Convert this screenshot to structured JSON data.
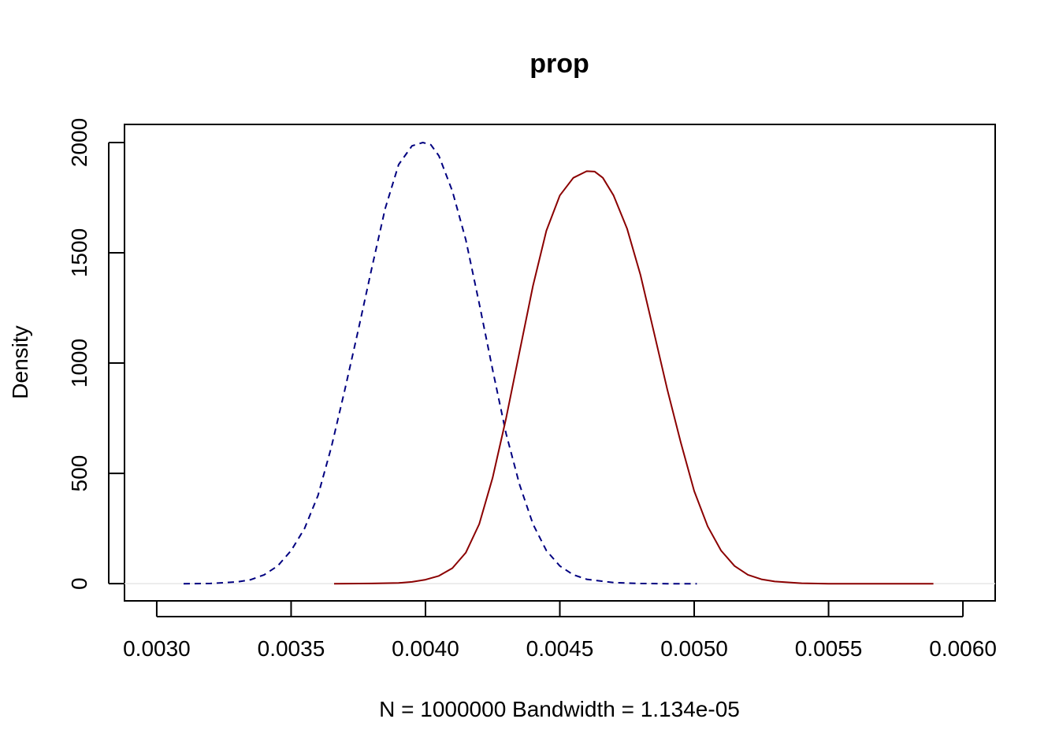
{
  "chart_data": {
    "type": "line",
    "title": "prop",
    "xlabel": "N = 1000000   Bandwidth = 1.134e-05",
    "ylabel": "Density",
    "xlim": [
      0.00288,
      0.00612
    ],
    "ylim": [
      -78,
      2082
    ],
    "x_ticks": [
      0.003,
      0.0035,
      0.004,
      0.0045,
      0.005,
      0.0055,
      0.006
    ],
    "x_tick_labels": [
      "0.0030",
      "0.0035",
      "0.0040",
      "0.0045",
      "0.0050",
      "0.0055",
      "0.0060"
    ],
    "y_ticks": [
      0,
      500,
      1000,
      1500,
      2000
    ],
    "y_tick_labels": [
      "0",
      "500",
      "1000",
      "1500",
      "2000"
    ],
    "grid": false,
    "legend": "none",
    "baseline_color": "#e6e6e6",
    "series": [
      {
        "color": "#000080",
        "line_style": "dashed",
        "x": [
          0.0031,
          0.0032,
          0.0033,
          0.00335,
          0.0034,
          0.00345,
          0.0035,
          0.00355,
          0.0036,
          0.00365,
          0.0037,
          0.00375,
          0.0038,
          0.00385,
          0.0039,
          0.00395,
          0.00399,
          0.00402,
          0.00405,
          0.0041,
          0.00415,
          0.0042,
          0.00425,
          0.0043,
          0.00435,
          0.0044,
          0.00445,
          0.0045,
          0.00455,
          0.0046,
          0.0047,
          0.0048,
          0.0049,
          0.00501
        ],
        "y": [
          0,
          1,
          8,
          18,
          40,
          80,
          150,
          250,
          400,
          620,
          880,
          1150,
          1430,
          1700,
          1900,
          1985,
          2000,
          1990,
          1940,
          1780,
          1560,
          1270,
          970,
          680,
          450,
          270,
          150,
          80,
          40,
          20,
          5,
          1,
          0,
          0
        ]
      },
      {
        "color": "#8b0000",
        "line_style": "solid",
        "x": [
          0.00366,
          0.0038,
          0.0039,
          0.00395,
          0.004,
          0.00405,
          0.0041,
          0.00415,
          0.0042,
          0.00425,
          0.0043,
          0.00435,
          0.0044,
          0.00445,
          0.0045,
          0.00455,
          0.0046,
          0.00463,
          0.00466,
          0.0047,
          0.00475,
          0.0048,
          0.00485,
          0.0049,
          0.00495,
          0.005,
          0.00505,
          0.0051,
          0.00515,
          0.0052,
          0.00525,
          0.0053,
          0.0054,
          0.0055,
          0.0056,
          0.00589
        ],
        "y": [
          0,
          1,
          3,
          8,
          18,
          35,
          70,
          140,
          270,
          480,
          750,
          1050,
          1350,
          1600,
          1760,
          1840,
          1870,
          1868,
          1840,
          1760,
          1610,
          1400,
          1140,
          880,
          640,
          420,
          260,
          150,
          80,
          40,
          20,
          10,
          2,
          0,
          0,
          0
        ]
      }
    ]
  }
}
